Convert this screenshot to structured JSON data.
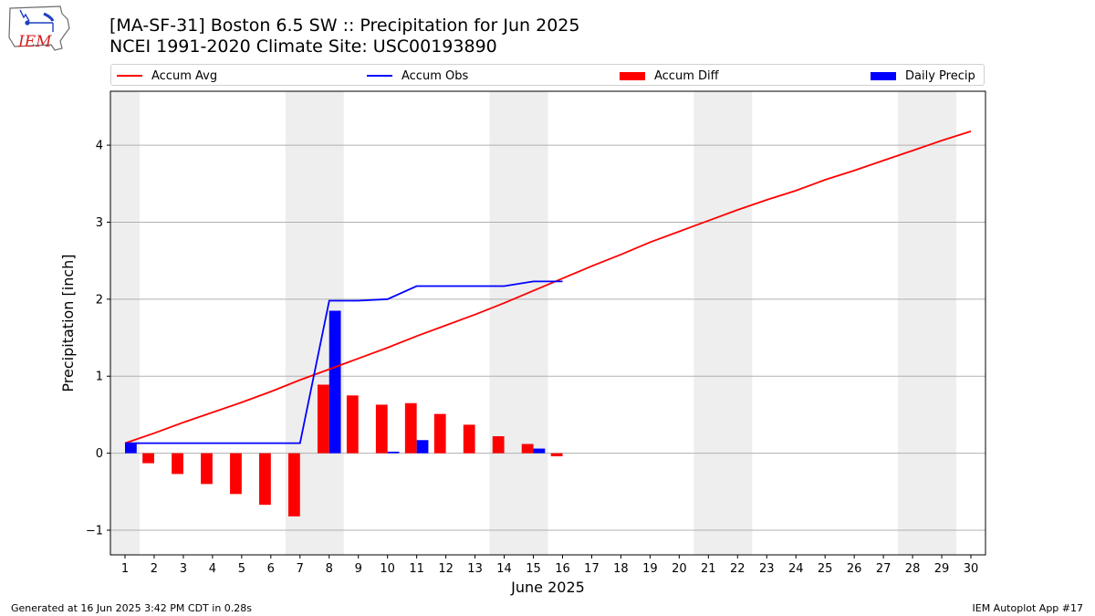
{
  "header": {
    "title_line1": "[MA-SF-31] Boston 6.5 SW :: Precipitation for Jun 2025",
    "title_line2": "NCEI 1991-2020 Climate Site: USC00193890"
  },
  "logo": {
    "text": "IEM",
    "color": "#d42020",
    "icon": "iem-iowa-weather-logo"
  },
  "legend": {
    "items": [
      {
        "label": "Accum Avg",
        "kind": "line",
        "color": "#ff0000"
      },
      {
        "label": "Accum Obs",
        "kind": "line",
        "color": "#0000ff"
      },
      {
        "label": "Accum Diff",
        "kind": "patch",
        "color": "#ff0000"
      },
      {
        "label": "Daily Precip",
        "kind": "patch",
        "color": "#0000ff"
      }
    ],
    "placement": "top"
  },
  "footer": {
    "left": "Generated at 16 Jun 2025 3:42 PM CDT in 0.28s",
    "right": "IEM Autoplot App #17"
  },
  "chart_data": {
    "type": "bar",
    "title": "[MA-SF-31] Boston 6.5 SW :: Precipitation for Jun 2025",
    "subtitle": "NCEI 1991-2020 Climate Site: USC00193890",
    "xlabel": "June 2025",
    "ylabel": "Precipitation [inch]",
    "xlim": [
      0.5,
      30.5
    ],
    "ylim": [
      -1.32,
      4.7
    ],
    "x_ticks": [
      1,
      2,
      3,
      4,
      5,
      6,
      7,
      8,
      9,
      10,
      11,
      12,
      13,
      14,
      15,
      16,
      17,
      18,
      19,
      20,
      21,
      22,
      23,
      24,
      25,
      26,
      27,
      28,
      29,
      30
    ],
    "y_ticks": [
      -1,
      0,
      1,
      2,
      3,
      4
    ],
    "y_tick_labels": [
      "−1",
      "0",
      "1",
      "2",
      "3",
      "4"
    ],
    "grid": "y",
    "weekend_shading": {
      "color": "#eeeeee",
      "days": [
        1,
        7,
        8,
        14,
        15,
        21,
        22,
        28,
        29
      ]
    },
    "series": [
      {
        "name": "Accum Avg",
        "kind": "line",
        "color": "#ff0000",
        "x": [
          1,
          2,
          3,
          4,
          5,
          6,
          7,
          8,
          9,
          10,
          11,
          12,
          13,
          14,
          15,
          16,
          17,
          18,
          19,
          20,
          21,
          22,
          23,
          24,
          25,
          26,
          27,
          28,
          29,
          30
        ],
        "values": [
          0.13,
          0.26,
          0.4,
          0.53,
          0.66,
          0.8,
          0.95,
          1.09,
          1.23,
          1.37,
          1.52,
          1.66,
          1.8,
          1.95,
          2.11,
          2.27,
          2.43,
          2.58,
          2.74,
          2.88,
          3.02,
          3.16,
          3.29,
          3.41,
          3.55,
          3.67,
          3.8,
          3.93,
          4.06,
          4.18
        ]
      },
      {
        "name": "Accum Obs",
        "kind": "line",
        "color": "#0000ff",
        "x": [
          1,
          2,
          3,
          4,
          5,
          6,
          7,
          8,
          9,
          10,
          11,
          12,
          13,
          14,
          15,
          16
        ],
        "values": [
          0.13,
          0.13,
          0.13,
          0.13,
          0.13,
          0.13,
          0.13,
          1.98,
          1.98,
          2.0,
          2.17,
          2.17,
          2.17,
          2.17,
          2.23,
          2.23
        ]
      },
      {
        "name": "Accum Diff",
        "kind": "bar",
        "color": "#ff0000",
        "x": [
          1,
          2,
          3,
          4,
          5,
          6,
          7,
          8,
          9,
          10,
          11,
          12,
          13,
          14,
          15,
          16
        ],
        "values": [
          0.0,
          -0.13,
          -0.27,
          -0.4,
          -0.53,
          -0.67,
          -0.82,
          0.89,
          0.75,
          0.63,
          0.65,
          0.51,
          0.37,
          0.22,
          0.12,
          -0.04
        ]
      },
      {
        "name": "Daily Precip",
        "kind": "bar",
        "color": "#0000ff",
        "x": [
          1,
          2,
          3,
          4,
          5,
          6,
          7,
          8,
          9,
          10,
          11,
          12,
          13,
          14,
          15,
          16
        ],
        "values": [
          0.13,
          0,
          0,
          0,
          0,
          0,
          0,
          1.85,
          0,
          0.02,
          0.17,
          0,
          0,
          0,
          0.06,
          0
        ]
      }
    ]
  }
}
